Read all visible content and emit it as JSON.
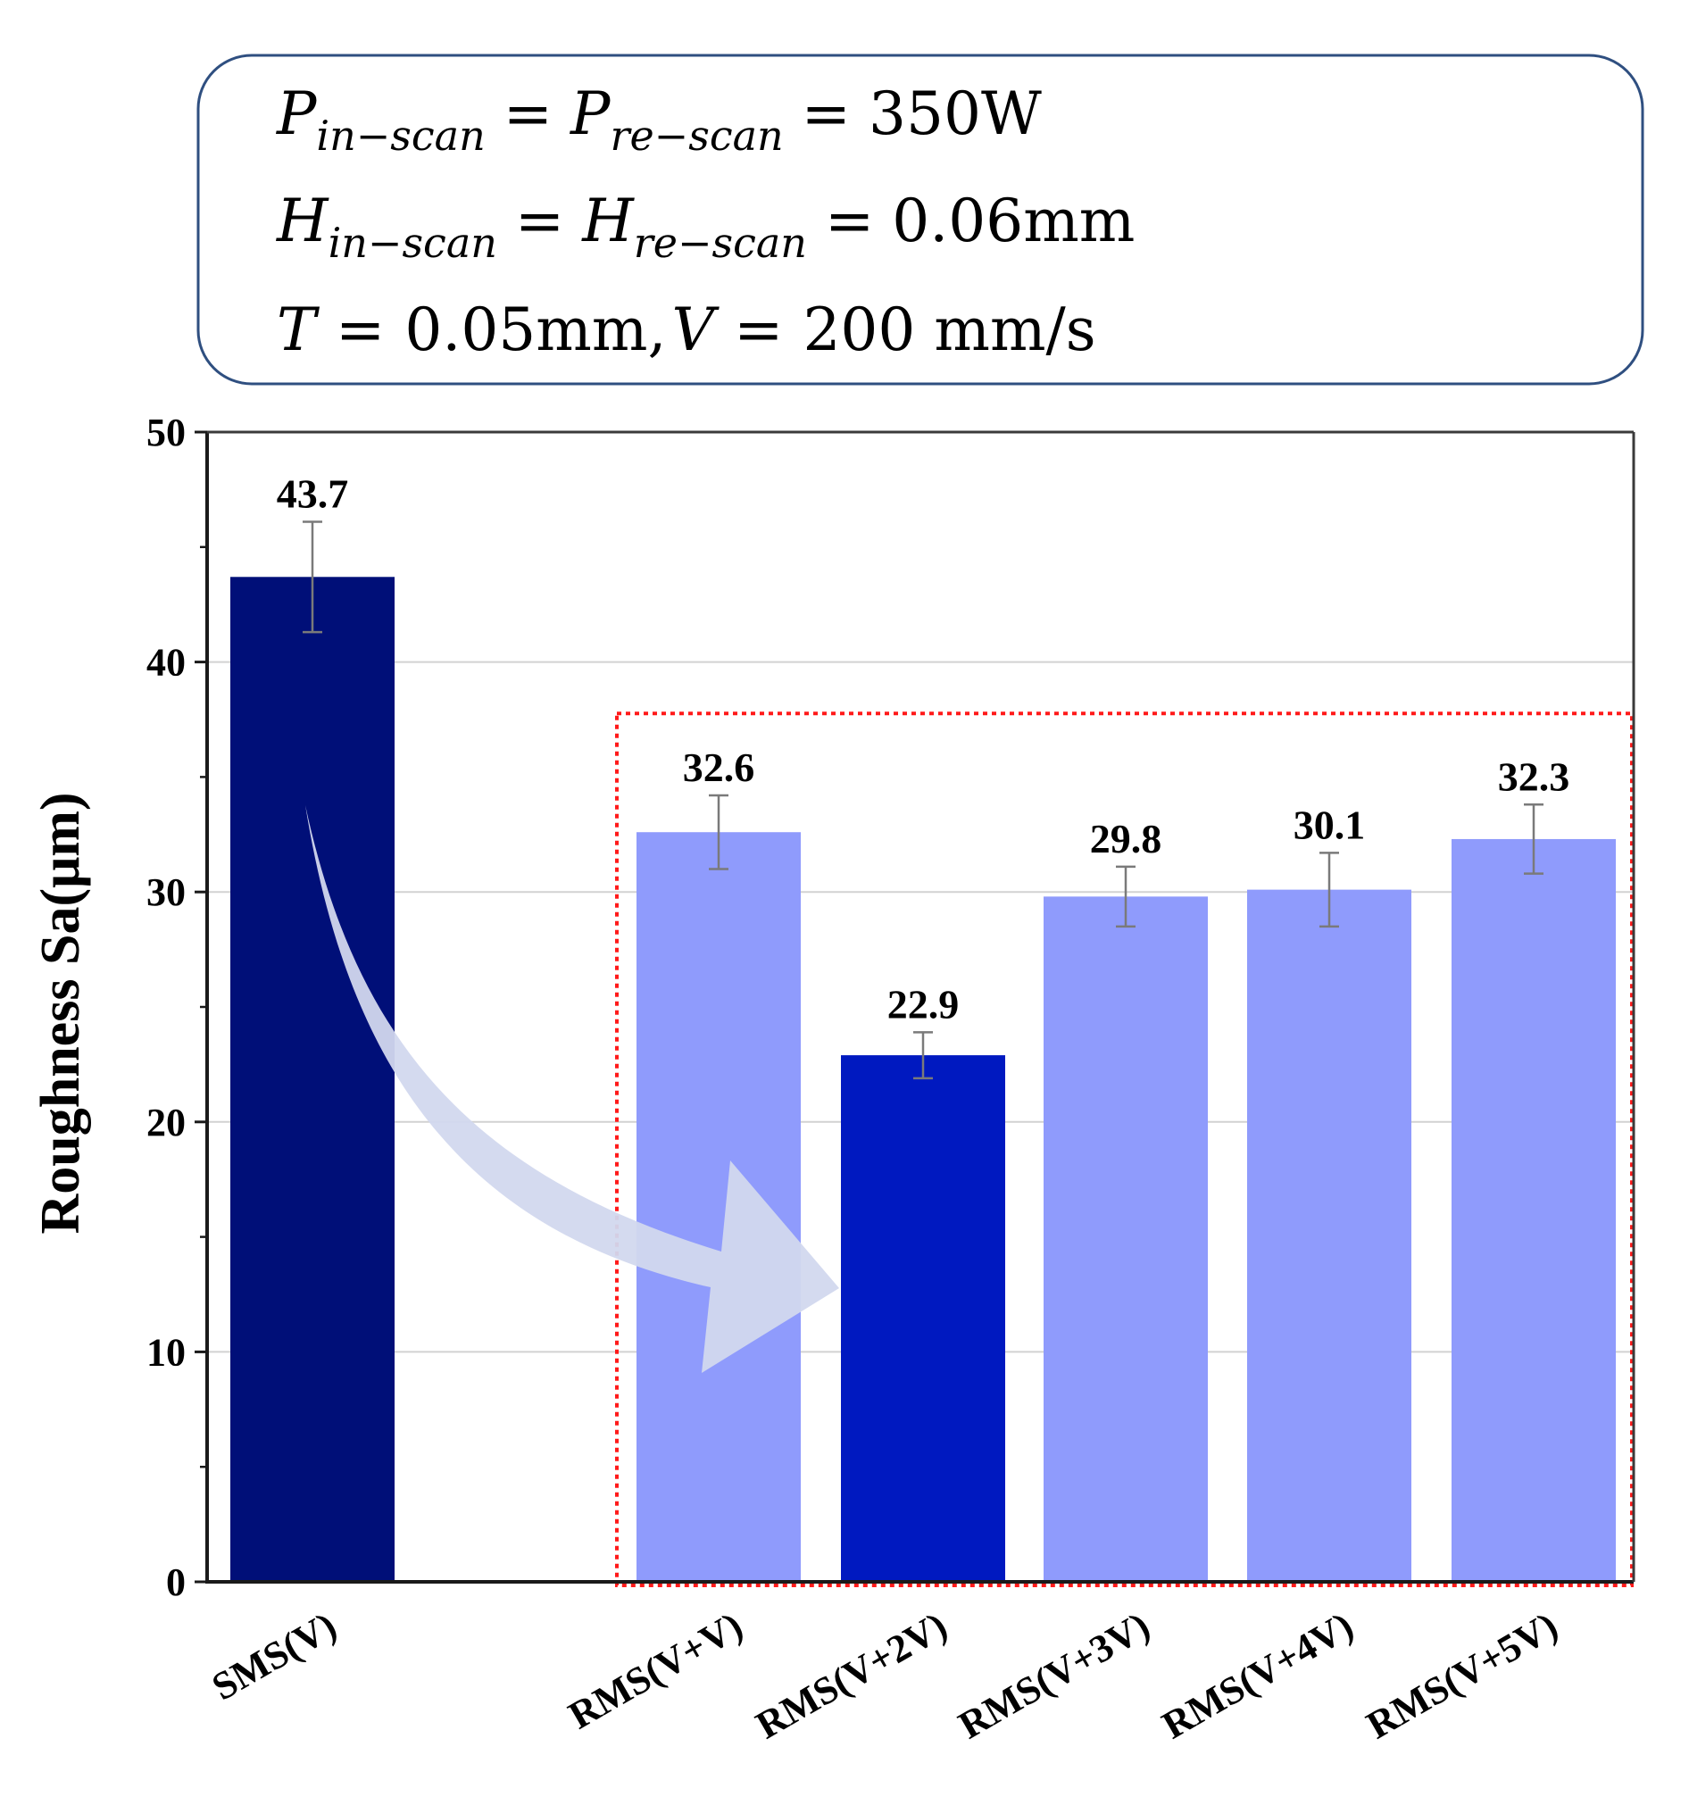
{
  "params": {
    "line1": {
      "P": "P",
      "sub_in": "in−scan",
      "eq": "=",
      "sub_re": "re−scan",
      "value": "350W"
    },
    "line2": {
      "H": "H",
      "sub_in": "in−scan",
      "eq": "=",
      "sub_re": "re−scan",
      "value": "0.06mm"
    },
    "line3": {
      "T": "T",
      "eq": "=",
      "t_value": "0.05mm,",
      "V": "V",
      "v_value": "200 mm/s"
    }
  },
  "chart_data": {
    "type": "bar",
    "title": "",
    "xlabel": "",
    "ylabel": "Roughness Sa(μm)",
    "ylim": [
      0,
      50
    ],
    "yticks": [
      0,
      10,
      20,
      30,
      40,
      50
    ],
    "grid": true,
    "categories": [
      "SMS(V)",
      "RMS(V+V)",
      "RMS(V+2V)",
      "RMS(V+3V)",
      "RMS(V+4V)",
      "RMS(V+5V)"
    ],
    "values": [
      43.7,
      32.6,
      22.9,
      29.8,
      30.1,
      32.3
    ],
    "value_labels": [
      "43.7",
      "32.6",
      "22.9",
      "29.8",
      "30.1",
      "32.3"
    ],
    "errors": [
      2.4,
      1.6,
      1.0,
      1.3,
      1.6,
      1.5
    ],
    "colors": [
      "#000f78",
      "#8f9bfc",
      "#0019c0",
      "#8f9bfc",
      "#8f9bfc",
      "#8f9bfc"
    ],
    "highlight_group": [
      "RMS(V+V)",
      "RMS(V+2V)",
      "RMS(V+3V)",
      "RMS(V+4V)",
      "RMS(V+5V)"
    ],
    "highlight_color": "#ff1a1a",
    "arrow": {
      "from": "SMS(V)",
      "to": "RMS(V+2V)",
      "color": "#d2d8ee"
    }
  }
}
